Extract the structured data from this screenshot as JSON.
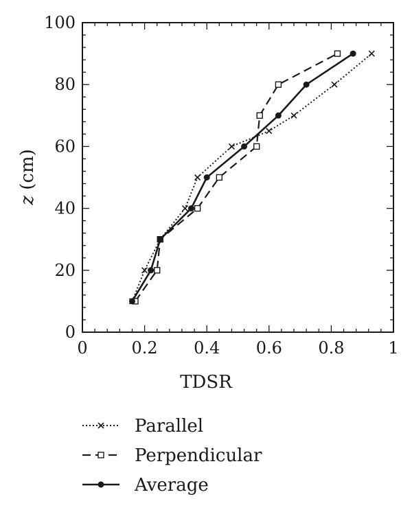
{
  "chart_data": {
    "type": "line",
    "xlabel": "TDSR",
    "ylabel_italic": "z",
    "ylabel_unit": " (cm)",
    "xlim": [
      0,
      1
    ],
    "ylim": [
      0,
      100
    ],
    "x_ticks": [
      0,
      0.2,
      0.4,
      0.6,
      0.8,
      1
    ],
    "x_tick_labels": [
      "0",
      "0.2",
      "0.4",
      "0.6",
      "0.8",
      "1"
    ],
    "y_ticks": [
      0,
      20,
      40,
      60,
      80,
      100
    ],
    "y_tick_labels": [
      "0",
      "20",
      "40",
      "60",
      "80",
      "100"
    ],
    "grid": false,
    "legend_position": "bottom-left",
    "series": [
      {
        "name": "Parallel",
        "style": "dotted",
        "marker": "x",
        "x": [
          0.16,
          0.2,
          0.25,
          0.33,
          0.37,
          0.48,
          0.6,
          0.68,
          0.81,
          0.93
        ],
        "y": [
          10,
          20,
          30,
          40,
          50,
          60,
          65,
          70,
          80,
          90
        ]
      },
      {
        "name": "Perpendicular",
        "style": "dashed",
        "marker": "open-square",
        "x": [
          0.17,
          0.24,
          0.25,
          0.37,
          0.44,
          0.56,
          0.57,
          0.63,
          0.82
        ],
        "y": [
          10,
          20,
          30,
          40,
          50,
          60,
          70,
          80,
          90
        ]
      },
      {
        "name": "Average",
        "style": "solid",
        "marker": "filled-circle",
        "x": [
          0.16,
          0.22,
          0.25,
          0.35,
          0.4,
          0.52,
          0.63,
          0.72,
          0.87
        ],
        "y": [
          10,
          20,
          30,
          40,
          50,
          60,
          70,
          80,
          90
        ]
      }
    ]
  }
}
